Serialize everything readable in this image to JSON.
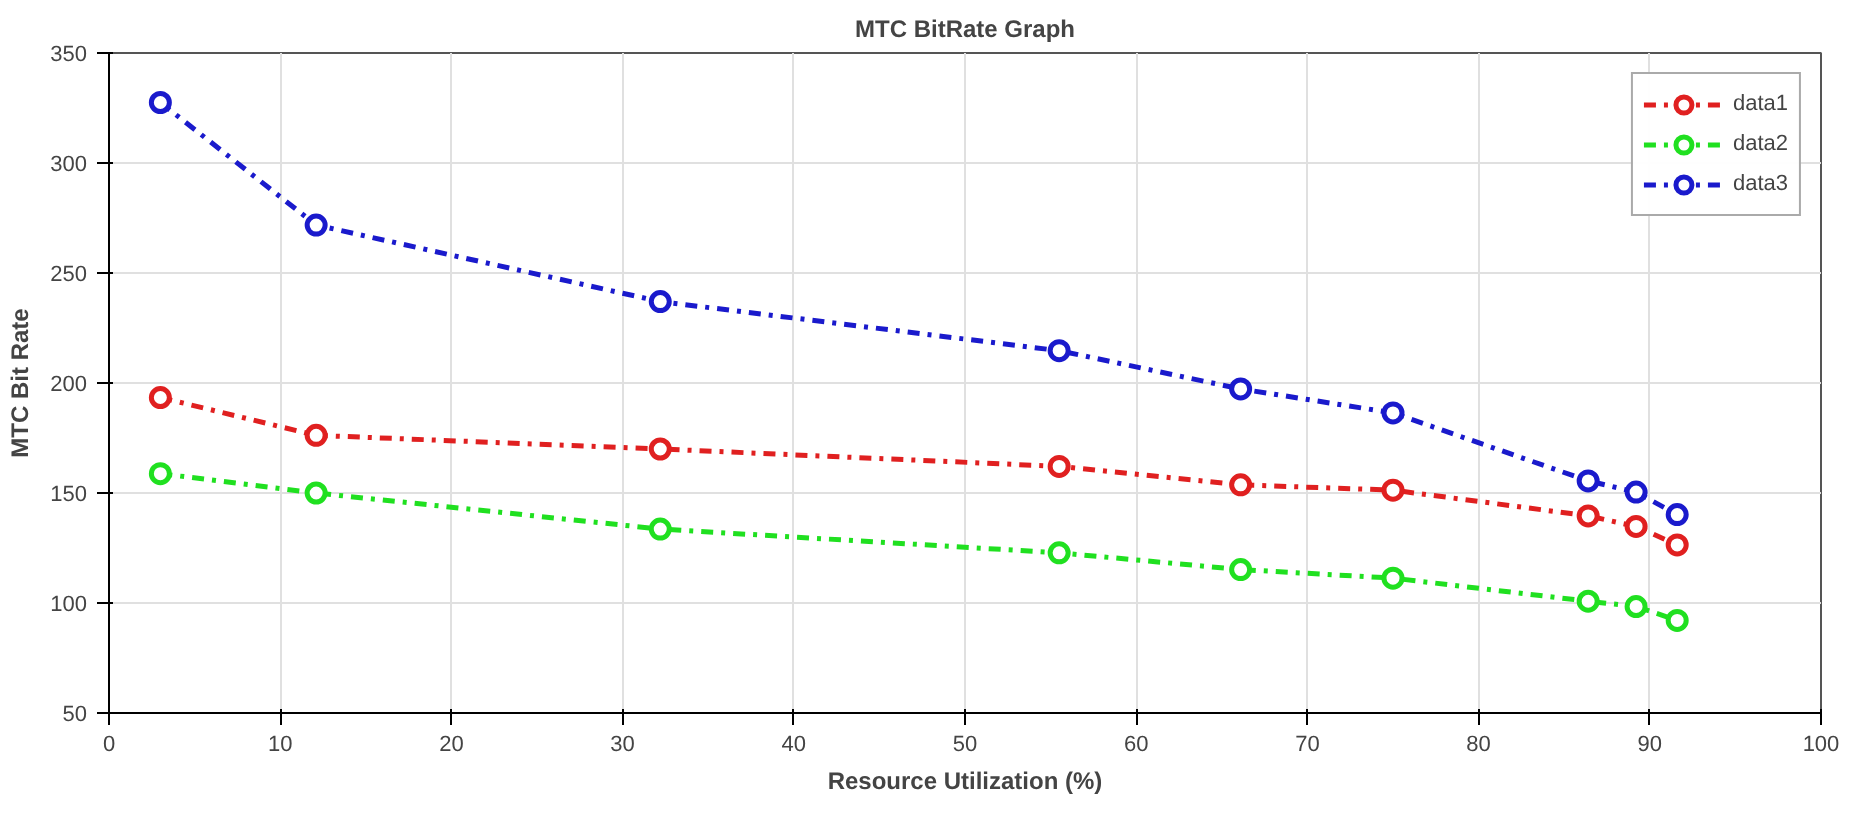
{
  "chart_data": {
    "type": "line",
    "title": "MTC BitRate Graph",
    "xlabel": "Resource Utilization (%)",
    "ylabel": "MTC Bit Rate",
    "x": [
      3,
      12.1,
      32.2,
      55.5,
      66.1,
      75.0,
      86.4,
      89.2,
      91.6
    ],
    "series": [
      {
        "name": "data1",
        "color": "#e02020",
        "values": [
          193.4,
          176.2,
          170,
          162.1,
          153.7,
          151.3,
          139.6,
          134.8,
          126.4
        ]
      },
      {
        "name": "data2",
        "color": "#20e020",
        "values": [
          158.8,
          150,
          133.6,
          122.8,
          115.2,
          111.3,
          100.8,
          98.4,
          92.1
        ]
      },
      {
        "name": "data3",
        "color": "#1a1acc",
        "values": [
          327.5,
          271.8,
          237,
          214.7,
          197.3,
          186.4,
          155.5,
          150.4,
          140.2
        ]
      }
    ],
    "xlim": [
      0,
      100
    ],
    "xticks": [
      0,
      10,
      20,
      30,
      40,
      50,
      60,
      70,
      80,
      90,
      100
    ],
    "ylim": [
      50,
      350
    ],
    "yticks": [
      50,
      100,
      150,
      200,
      250,
      300,
      350
    ],
    "grid": true,
    "legend": "top right",
    "marker": "circle",
    "line_style": "dashed"
  }
}
